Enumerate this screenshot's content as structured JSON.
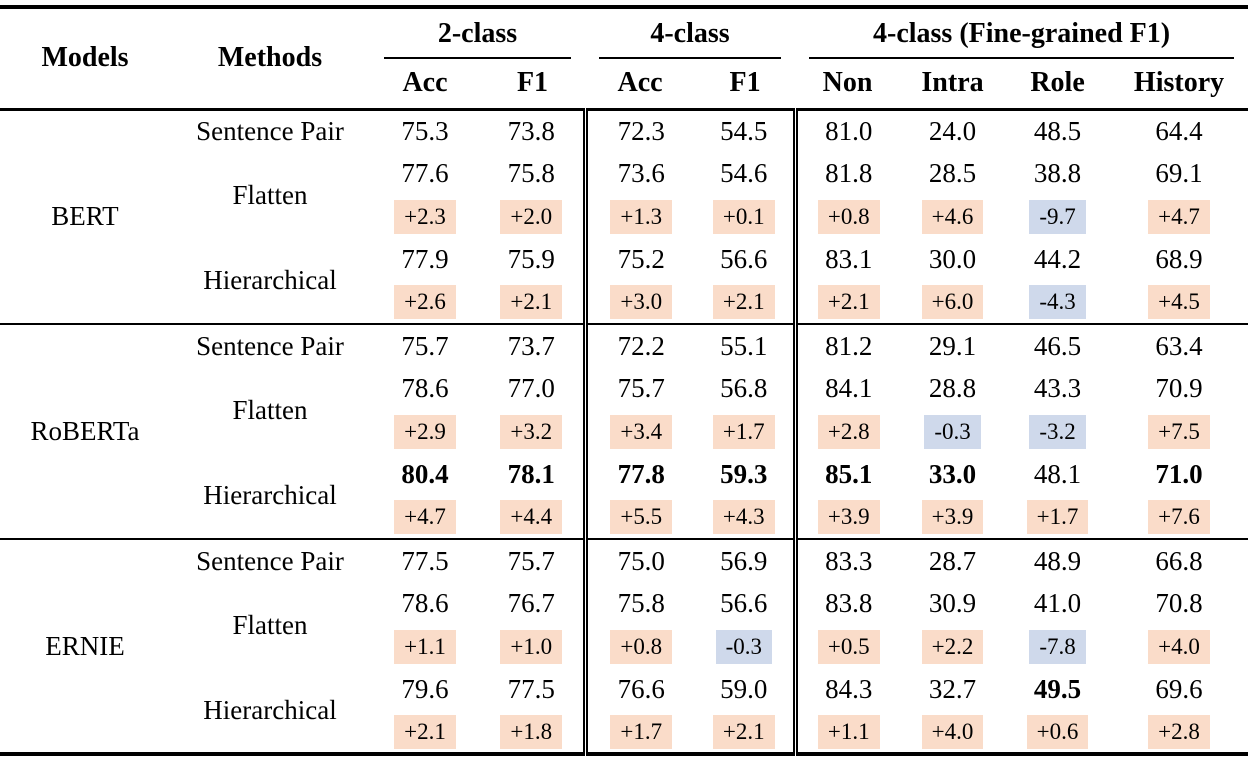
{
  "colors": {
    "positive_delta_bg": "#fadcc9",
    "negative_delta_bg": "#cfd9eb",
    "rule": "#000000",
    "background": "#ffffff"
  },
  "table": {
    "header": {
      "models": "Models",
      "methods": "Methods",
      "groups": [
        {
          "label": "2-class",
          "cols": [
            "Acc",
            "F1"
          ]
        },
        {
          "label": "4-class",
          "cols": [
            "Acc",
            "F1"
          ]
        },
        {
          "label": "4-class (Fine-grained F1)",
          "cols": [
            "Non",
            "Intra",
            "Role",
            "History"
          ]
        }
      ]
    },
    "groups": [
      {
        "model": "BERT",
        "rows": [
          {
            "kind": "values",
            "method": "Sentence Pair",
            "method_rowspan": 1,
            "values": [
              "75.3",
              "73.8",
              "72.3",
              "54.5",
              "81.0",
              "24.0",
              "48.5",
              "64.4"
            ],
            "bold": []
          },
          {
            "kind": "values",
            "method": "Flatten",
            "method_rowspan": 2,
            "values": [
              "77.6",
              "75.8",
              "73.6",
              "54.6",
              "81.8",
              "28.5",
              "38.8",
              "69.1"
            ],
            "bold": []
          },
          {
            "kind": "delta",
            "values": [
              "+2.3",
              "+2.0",
              "+1.3",
              "+0.1",
              "+0.8",
              "+4.6",
              "-9.7",
              "+4.7"
            ]
          },
          {
            "kind": "values",
            "method": "Hierarchical",
            "method_rowspan": 2,
            "values": [
              "77.9",
              "75.9",
              "75.2",
              "56.6",
              "83.1",
              "30.0",
              "44.2",
              "68.9"
            ],
            "bold": []
          },
          {
            "kind": "delta",
            "values": [
              "+2.6",
              "+2.1",
              "+3.0",
              "+2.1",
              "+2.1",
              "+6.0",
              "-4.3",
              "+4.5"
            ]
          }
        ]
      },
      {
        "model": "RoBERTa",
        "rows": [
          {
            "kind": "values",
            "method": "Sentence Pair",
            "method_rowspan": 1,
            "values": [
              "75.7",
              "73.7",
              "72.2",
              "55.1",
              "81.2",
              "29.1",
              "46.5",
              "63.4"
            ],
            "bold": []
          },
          {
            "kind": "values",
            "method": "Flatten",
            "method_rowspan": 2,
            "values": [
              "78.6",
              "77.0",
              "75.7",
              "56.8",
              "84.1",
              "28.8",
              "43.3",
              "70.9"
            ],
            "bold": []
          },
          {
            "kind": "delta",
            "values": [
              "+2.9",
              "+3.2",
              "+3.4",
              "+1.7",
              "+2.8",
              "-0.3",
              "-3.2",
              "+7.5"
            ]
          },
          {
            "kind": "values",
            "method": "Hierarchical",
            "method_rowspan": 2,
            "values": [
              "80.4",
              "78.1",
              "77.8",
              "59.3",
              "85.1",
              "33.0",
              "48.1",
              "71.0"
            ],
            "bold": [
              0,
              1,
              2,
              3,
              4,
              5,
              7
            ]
          },
          {
            "kind": "delta",
            "values": [
              "+4.7",
              "+4.4",
              "+5.5",
              "+4.3",
              "+3.9",
              "+3.9",
              "+1.7",
              "+7.6"
            ]
          }
        ]
      },
      {
        "model": "ERNIE",
        "rows": [
          {
            "kind": "values",
            "method": "Sentence Pair",
            "method_rowspan": 1,
            "values": [
              "77.5",
              "75.7",
              "75.0",
              "56.9",
              "83.3",
              "28.7",
              "48.9",
              "66.8"
            ],
            "bold": []
          },
          {
            "kind": "values",
            "method": "Flatten",
            "method_rowspan": 2,
            "values": [
              "78.6",
              "76.7",
              "75.8",
              "56.6",
              "83.8",
              "30.9",
              "41.0",
              "70.8"
            ],
            "bold": []
          },
          {
            "kind": "delta",
            "values": [
              "+1.1",
              "+1.0",
              "+0.8",
              "-0.3",
              "+0.5",
              "+2.2",
              "-7.8",
              "+4.0"
            ]
          },
          {
            "kind": "values",
            "method": "Hierarchical",
            "method_rowspan": 2,
            "values": [
              "79.6",
              "77.5",
              "76.6",
              "59.0",
              "84.3",
              "32.7",
              "49.5",
              "69.6"
            ],
            "bold": [
              6
            ]
          },
          {
            "kind": "delta",
            "values": [
              "+2.1",
              "+1.8",
              "+1.7",
              "+2.1",
              "+1.1",
              "+4.0",
              "+0.6",
              "+2.8"
            ]
          }
        ]
      }
    ]
  }
}
